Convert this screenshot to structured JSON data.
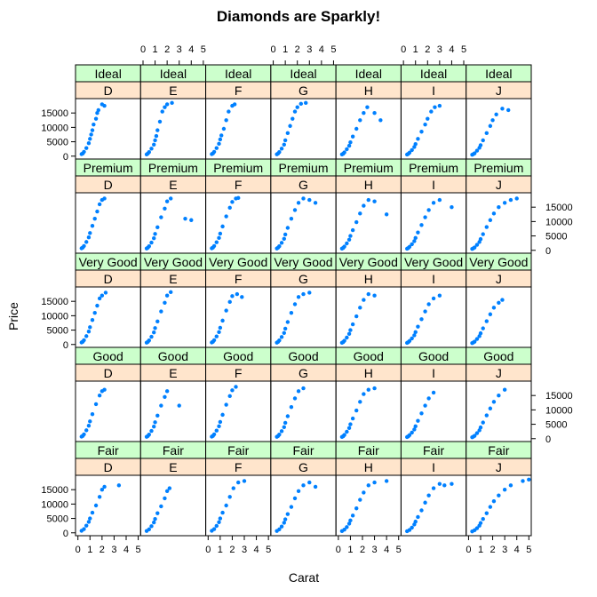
{
  "chart_data": {
    "type": "scatter",
    "title": "Diamonds are Sparkly!",
    "xlabel": "Carat",
    "ylabel": "Price",
    "xlim": [
      -0.2,
      5.2
    ],
    "ylim": [
      -1000,
      20000
    ],
    "x_ticks": [
      "0",
      "1",
      "2",
      "3",
      "4",
      "5"
    ],
    "y_ticks": [
      "0",
      "5000",
      "10000",
      "15000"
    ],
    "x_tick_values": [
      0,
      1,
      2,
      3,
      4,
      5
    ],
    "y_tick_values": [
      0,
      5000,
      10000,
      15000
    ],
    "colors": [
      "D",
      "E",
      "F",
      "G",
      "H",
      "I",
      "J"
    ],
    "cuts": [
      "Ideal",
      "Premium",
      "Very Good",
      "Good",
      "Fair"
    ],
    "point_color": "#0080ff",
    "cut_strip_color": "#ccffcc",
    "color_strip_color": "#ffe5cc",
    "panels": [
      {
        "cut": "Ideal",
        "color": "D",
        "x": [
          0.3,
          0.4,
          0.5,
          0.7,
          0.9,
          1.0,
          1.1,
          1.2,
          1.5,
          1.6,
          2.0,
          1.3,
          1.7,
          2.2
        ],
        "y": [
          700,
          900,
          1500,
          2800,
          4500,
          6000,
          7500,
          9000,
          13000,
          15000,
          18000,
          11000,
          16000,
          17500
        ]
      },
      {
        "cut": "Ideal",
        "color": "E",
        "x": [
          0.3,
          0.4,
          0.5,
          0.7,
          0.9,
          1.0,
          1.1,
          1.2,
          1.4,
          1.6,
          2.0,
          1.8,
          2.4
        ],
        "y": [
          600,
          900,
          1400,
          2600,
          4000,
          5500,
          7000,
          9000,
          12000,
          15500,
          18000,
          17000,
          18500
        ]
      },
      {
        "cut": "Ideal",
        "color": "F",
        "x": [
          0.3,
          0.4,
          0.5,
          0.7,
          0.9,
          1.0,
          1.1,
          1.3,
          1.5,
          1.7,
          2.0,
          2.2
        ],
        "y": [
          700,
          950,
          1500,
          2800,
          4300,
          5800,
          7200,
          9500,
          12500,
          15500,
          17500,
          18000
        ]
      },
      {
        "cut": "Ideal",
        "color": "G",
        "x": [
          0.3,
          0.4,
          0.5,
          0.7,
          0.9,
          1.0,
          1.2,
          1.4,
          1.6,
          1.8,
          2.0,
          2.3,
          2.7
        ],
        "y": [
          650,
          900,
          1400,
          2600,
          4000,
          5500,
          8000,
          10500,
          13000,
          15500,
          17000,
          18200,
          18500
        ]
      },
      {
        "cut": "Ideal",
        "color": "H",
        "x": [
          0.3,
          0.4,
          0.5,
          0.7,
          0.9,
          1.0,
          1.2,
          1.5,
          1.8,
          2.1,
          2.4,
          3.0,
          3.5
        ],
        "y": [
          600,
          850,
          1300,
          2400,
          3600,
          4800,
          6800,
          9500,
          12500,
          15000,
          17000,
          15000,
          12500
        ]
      },
      {
        "cut": "Ideal",
        "color": "I",
        "x": [
          0.3,
          0.4,
          0.5,
          0.7,
          0.9,
          1.0,
          1.2,
          1.5,
          1.8,
          2.0,
          2.3,
          2.6,
          3.0
        ],
        "y": [
          550,
          800,
          1200,
          2100,
          3200,
          4200,
          6000,
          8500,
          11000,
          13000,
          15500,
          17000,
          17500
        ]
      },
      {
        "cut": "Ideal",
        "color": "J",
        "x": [
          0.3,
          0.4,
          0.5,
          0.7,
          0.9,
          1.0,
          1.2,
          1.5,
          1.8,
          2.0,
          2.3,
          2.8,
          3.3
        ],
        "y": [
          500,
          700,
          1000,
          1900,
          2900,
          3800,
          5500,
          8000,
          10500,
          12500,
          14500,
          16500,
          16000
        ]
      },
      {
        "cut": "Premium",
        "color": "D",
        "x": [
          0.3,
          0.4,
          0.5,
          0.7,
          0.9,
          1.0,
          1.2,
          1.4,
          1.6,
          2.0,
          2.2,
          1.8
        ],
        "y": [
          700,
          950,
          1500,
          2900,
          4500,
          6000,
          8500,
          11000,
          13500,
          17500,
          18000,
          16000
        ]
      },
      {
        "cut": "Premium",
        "color": "E",
        "x": [
          0.3,
          0.4,
          0.5,
          0.7,
          0.9,
          1.0,
          1.2,
          1.5,
          1.8,
          2.0,
          2.3,
          3.5,
          4.0
        ],
        "y": [
          650,
          900,
          1400,
          2700,
          4200,
          5700,
          8000,
          11500,
          14500,
          17000,
          18000,
          11000,
          10500
        ]
      },
      {
        "cut": "Premium",
        "color": "F",
        "x": [
          0.3,
          0.4,
          0.5,
          0.7,
          0.9,
          1.0,
          1.2,
          1.5,
          1.8,
          2.0,
          2.3,
          2.5
        ],
        "y": [
          700,
          950,
          1500,
          2800,
          4300,
          5800,
          8300,
          11800,
          14800,
          16800,
          18000,
          18200
        ]
      },
      {
        "cut": "Premium",
        "color": "G",
        "x": [
          0.3,
          0.4,
          0.5,
          0.7,
          0.9,
          1.0,
          1.2,
          1.5,
          1.8,
          2.1,
          2.5,
          3.0,
          3.5
        ],
        "y": [
          650,
          900,
          1400,
          2600,
          4000,
          5500,
          7800,
          11000,
          14000,
          16500,
          18000,
          17500,
          16500
        ]
      },
      {
        "cut": "Premium",
        "color": "H",
        "x": [
          0.3,
          0.4,
          0.5,
          0.7,
          0.9,
          1.0,
          1.2,
          1.5,
          1.8,
          2.1,
          2.5,
          3.0,
          4.0
        ],
        "y": [
          600,
          850,
          1300,
          2400,
          3700,
          5000,
          7000,
          9800,
          12800,
          15500,
          17500,
          17000,
          12500
        ]
      },
      {
        "cut": "Premium",
        "color": "I",
        "x": [
          0.3,
          0.4,
          0.5,
          0.7,
          0.9,
          1.0,
          1.2,
          1.5,
          1.8,
          2.1,
          2.5,
          3.0,
          4.0
        ],
        "y": [
          550,
          800,
          1200,
          2100,
          3200,
          4300,
          6200,
          8800,
          11500,
          14000,
          16500,
          17500,
          15000
        ]
      },
      {
        "cut": "Premium",
        "color": "J",
        "x": [
          0.3,
          0.4,
          0.5,
          0.7,
          0.9,
          1.0,
          1.2,
          1.5,
          1.8,
          2.1,
          2.5,
          3.0,
          3.5,
          4.0
        ],
        "y": [
          500,
          700,
          1000,
          1900,
          2900,
          3900,
          5600,
          8100,
          10500,
          12800,
          15000,
          16500,
          17500,
          18000
        ]
      },
      {
        "cut": "Very Good",
        "color": "D",
        "x": [
          0.3,
          0.4,
          0.5,
          0.7,
          0.9,
          1.0,
          1.2,
          1.4,
          1.6,
          2.0,
          2.3,
          1.8
        ],
        "y": [
          700,
          950,
          1500,
          2900,
          4500,
          6000,
          8500,
          11000,
          13500,
          17000,
          18000,
          16000
        ]
      },
      {
        "cut": "Very Good",
        "color": "E",
        "x": [
          0.3,
          0.4,
          0.5,
          0.7,
          0.9,
          1.0,
          1.2,
          1.5,
          1.8,
          2.0,
          2.3
        ],
        "y": [
          650,
          900,
          1400,
          2700,
          4200,
          5700,
          8000,
          11500,
          14500,
          17000,
          18200
        ]
      },
      {
        "cut": "Very Good",
        "color": "F",
        "x": [
          0.3,
          0.4,
          0.5,
          0.7,
          0.9,
          1.0,
          1.2,
          1.5,
          1.8,
          2.0,
          2.4,
          2.8
        ],
        "y": [
          700,
          950,
          1500,
          2800,
          4300,
          5800,
          8300,
          11800,
          14800,
          16800,
          17500,
          16500
        ]
      },
      {
        "cut": "Very Good",
        "color": "G",
        "x": [
          0.3,
          0.4,
          0.5,
          0.7,
          0.9,
          1.0,
          1.2,
          1.5,
          1.8,
          2.1,
          2.5,
          3.0
        ],
        "y": [
          650,
          900,
          1400,
          2600,
          4000,
          5500,
          7800,
          11000,
          14000,
          16500,
          17500,
          18000
        ]
      },
      {
        "cut": "Very Good",
        "color": "H",
        "x": [
          0.3,
          0.4,
          0.5,
          0.7,
          0.9,
          1.0,
          1.2,
          1.5,
          1.8,
          2.1,
          2.5,
          3.0
        ],
        "y": [
          600,
          850,
          1300,
          2400,
          3700,
          5000,
          7000,
          9800,
          12800,
          15500,
          17500,
          17000
        ]
      },
      {
        "cut": "Very Good",
        "color": "I",
        "x": [
          0.3,
          0.4,
          0.5,
          0.7,
          0.9,
          1.0,
          1.2,
          1.5,
          1.8,
          2.1,
          2.5,
          3.0
        ],
        "y": [
          550,
          800,
          1200,
          2100,
          3200,
          4300,
          6200,
          8800,
          11500,
          14000,
          16000,
          17000
        ]
      },
      {
        "cut": "Very Good",
        "color": "J",
        "x": [
          0.3,
          0.4,
          0.5,
          0.7,
          0.9,
          1.0,
          1.2,
          1.5,
          1.8,
          2.1,
          2.5,
          2.8
        ],
        "y": [
          500,
          700,
          1000,
          1900,
          2900,
          3900,
          5600,
          8100,
          10500,
          12800,
          14500,
          15500
        ]
      },
      {
        "cut": "Good",
        "color": "D",
        "x": [
          0.3,
          0.4,
          0.5,
          0.7,
          0.9,
          1.0,
          1.2,
          1.5,
          1.8,
          2.0,
          2.2
        ],
        "y": [
          700,
          950,
          1500,
          2900,
          4500,
          6000,
          8500,
          12000,
          15000,
          16500,
          17000
        ]
      },
      {
        "cut": "Good",
        "color": "E",
        "x": [
          0.3,
          0.4,
          0.5,
          0.7,
          0.9,
          1.0,
          1.2,
          1.5,
          1.8,
          2.0,
          3.0
        ],
        "y": [
          650,
          900,
          1400,
          2700,
          4200,
          5700,
          8000,
          11500,
          14500,
          16500,
          11500
        ]
      },
      {
        "cut": "Good",
        "color": "F",
        "x": [
          0.3,
          0.4,
          0.5,
          0.7,
          0.9,
          1.0,
          1.2,
          1.5,
          1.8,
          2.0,
          2.3
        ],
        "y": [
          700,
          950,
          1500,
          2800,
          4300,
          5800,
          8300,
          11800,
          14800,
          16800,
          18000
        ]
      },
      {
        "cut": "Good",
        "color": "G",
        "x": [
          0.3,
          0.4,
          0.5,
          0.7,
          0.9,
          1.0,
          1.2,
          1.5,
          1.8,
          2.1,
          2.5
        ],
        "y": [
          650,
          900,
          1400,
          2600,
          4000,
          5500,
          7800,
          11000,
          14000,
          16500,
          17500
        ]
      },
      {
        "cut": "Good",
        "color": "H",
        "x": [
          0.3,
          0.4,
          0.5,
          0.7,
          0.9,
          1.0,
          1.2,
          1.5,
          1.8,
          2.1,
          2.5,
          3.0
        ],
        "y": [
          600,
          850,
          1300,
          2400,
          3700,
          5000,
          7000,
          9800,
          12800,
          15500,
          17000,
          17500
        ]
      },
      {
        "cut": "Good",
        "color": "I",
        "x": [
          0.3,
          0.4,
          0.5,
          0.7,
          0.9,
          1.0,
          1.2,
          1.5,
          1.8,
          2.1,
          2.5
        ],
        "y": [
          550,
          800,
          1200,
          2100,
          3200,
          4300,
          6200,
          8800,
          11500,
          14000,
          16000
        ]
      },
      {
        "cut": "Good",
        "color": "J",
        "x": [
          0.3,
          0.4,
          0.5,
          0.7,
          0.9,
          1.0,
          1.2,
          1.5,
          1.8,
          2.1,
          2.5,
          3.0
        ],
        "y": [
          500,
          700,
          1000,
          1900,
          2900,
          3900,
          5600,
          8100,
          10500,
          12800,
          15000,
          17000
        ]
      },
      {
        "cut": "Fair",
        "color": "D",
        "x": [
          0.3,
          0.5,
          0.7,
          0.9,
          1.0,
          1.2,
          1.5,
          1.8,
          2.0,
          2.2,
          3.4
        ],
        "y": [
          700,
          1300,
          2500,
          3800,
          5000,
          7000,
          9500,
          12500,
          15000,
          16000,
          16500
        ]
      },
      {
        "cut": "Fair",
        "color": "E",
        "x": [
          0.3,
          0.5,
          0.7,
          0.9,
          1.0,
          1.2,
          1.5,
          1.8,
          2.0,
          2.2
        ],
        "y": [
          650,
          1200,
          2300,
          3600,
          4800,
          6800,
          9200,
          12000,
          14500,
          15500
        ]
      },
      {
        "cut": "Fair",
        "color": "F",
        "x": [
          0.3,
          0.5,
          0.7,
          0.9,
          1.0,
          1.2,
          1.5,
          1.8,
          2.1,
          2.5,
          3.0
        ],
        "y": [
          700,
          1300,
          2400,
          3700,
          5000,
          7000,
          9500,
          12500,
          15500,
          17500,
          18000
        ]
      },
      {
        "cut": "Fair",
        "color": "G",
        "x": [
          0.3,
          0.5,
          0.7,
          0.9,
          1.0,
          1.2,
          1.5,
          1.8,
          2.1,
          2.5,
          3.0,
          3.5
        ],
        "y": [
          650,
          1200,
          2200,
          3500,
          4700,
          6500,
          9000,
          12000,
          14500,
          16500,
          17500,
          16000
        ]
      },
      {
        "cut": "Fair",
        "color": "H",
        "x": [
          0.3,
          0.5,
          0.7,
          0.9,
          1.0,
          1.2,
          1.5,
          1.8,
          2.1,
          2.5,
          3.0,
          4.0
        ],
        "y": [
          600,
          1100,
          2000,
          3200,
          4300,
          6000,
          8500,
          11500,
          14000,
          16500,
          17500,
          18000
        ]
      },
      {
        "cut": "Fair",
        "color": "I",
        "x": [
          0.3,
          0.5,
          0.7,
          0.9,
          1.0,
          1.2,
          1.5,
          1.8,
          2.1,
          2.5,
          3.0,
          3.4,
          4.0
        ],
        "y": [
          550,
          1000,
          1800,
          2900,
          3900,
          5500,
          7800,
          10500,
          13000,
          15500,
          17000,
          16500,
          17000
        ]
      },
      {
        "cut": "Fair",
        "color": "J",
        "x": [
          0.3,
          0.5,
          0.7,
          0.9,
          1.0,
          1.2,
          1.5,
          1.8,
          2.1,
          2.5,
          3.0,
          3.5,
          4.5,
          5.0
        ],
        "y": [
          500,
          900,
          1600,
          2500,
          3400,
          4800,
          6800,
          9000,
          11000,
          13000,
          15000,
          16500,
          18000,
          18500
        ]
      }
    ]
  }
}
